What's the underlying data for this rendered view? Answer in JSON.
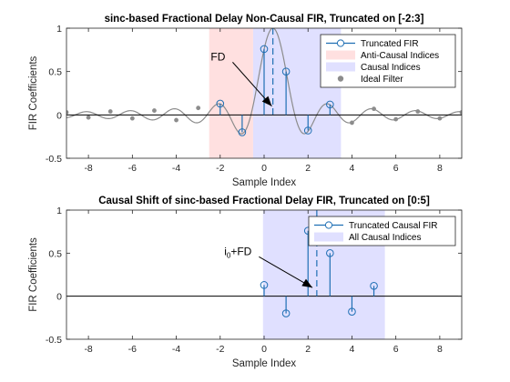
{
  "chart_data": [
    {
      "type": "stem",
      "title": "sinc-based Fractional Delay Non-Causal FIR, Truncated on [-2:3]",
      "xlabel": "Sample Index",
      "ylabel": "FIR Coefficients",
      "xlim": [
        -9,
        9
      ],
      "ylim": [
        -0.5,
        1
      ],
      "xticks": [
        "-8",
        "-6",
        "-4",
        "-2",
        "0",
        "2",
        "4",
        "6",
        "8"
      ],
      "yticks": [
        "-0.5",
        "0",
        "0.5",
        "1"
      ],
      "fractional_delay": 0.4,
      "delay_line_x": 0.4,
      "regions": [
        {
          "name": "Anti-Causal Indices",
          "x_range": [
            -2.5,
            -0.5
          ],
          "color": "#ffe0e0"
        },
        {
          "name": "Causal Indices",
          "x_range": [
            -0.5,
            3.5
          ],
          "color": "#e0e0ff"
        }
      ],
      "series": [
        {
          "name": "Truncated FIR",
          "style": "stem",
          "x": [
            -2,
            -1,
            0,
            1,
            2,
            3
          ],
          "values": [
            0.13,
            -0.2,
            0.76,
            0.5,
            -0.18,
            0.12
          ]
        },
        {
          "name": "Ideal Filter",
          "style": "sampled-curve",
          "x": [
            -9,
            -8,
            -7,
            -6,
            -5,
            -4,
            -3,
            4,
            5,
            6,
            7,
            8,
            9
          ],
          "values": [
            0.03,
            -0.03,
            0.04,
            -0.04,
            0.05,
            -0.06,
            0.08,
            -0.09,
            0.07,
            -0.05,
            0.04,
            -0.04,
            0.03
          ]
        }
      ],
      "legend": {
        "placement": "top-right",
        "entries": [
          {
            "label": "Truncated FIR",
            "kind": "stem-marker",
            "color": "#1f6fb4"
          },
          {
            "label": "Anti-Causal Indices",
            "kind": "patch",
            "color": "#ffe0e0"
          },
          {
            "label": "Causal Indices",
            "kind": "patch",
            "color": "#e0e0ff"
          },
          {
            "label": "Ideal Filter",
            "kind": "dot",
            "color": "#8c8c8c"
          }
        ]
      },
      "annotation": {
        "text": "FD",
        "tail": [
          -1.6,
          0.65
        ],
        "head": [
          0.35,
          0.1
        ]
      }
    },
    {
      "type": "stem",
      "title": "Causal Shift of sinc-based Fractional Delay FIR, Truncated on [0:5]",
      "xlabel": "Sample Index",
      "ylabel": "FIR Coefficients",
      "xlim": [
        -9,
        9
      ],
      "ylim": [
        -0.5,
        1
      ],
      "xticks": [
        "-8",
        "-6",
        "-4",
        "-2",
        "0",
        "2",
        "4",
        "6",
        "8"
      ],
      "yticks": [
        "-0.5",
        "0",
        "0.5",
        "1"
      ],
      "delay_line_x": 2.4,
      "regions": [
        {
          "name": "All Causal Indices",
          "x_range": [
            -0.05,
            5.5
          ],
          "color": "#e0e0ff"
        }
      ],
      "series": [
        {
          "name": "Truncated Causal FIR",
          "style": "stem",
          "x": [
            0,
            1,
            2,
            3,
            4,
            5
          ],
          "values": [
            0.13,
            -0.2,
            0.76,
            0.5,
            -0.18,
            0.12
          ]
        }
      ],
      "legend": {
        "placement": "top-right",
        "entries": [
          {
            "label": "Truncated Causal FIR",
            "kind": "stem-marker",
            "color": "#1f6fb4"
          },
          {
            "label": "All Causal Indices",
            "kind": "patch",
            "color": "#e0e0ff"
          }
        ]
      },
      "annotation": {
        "text": "i",
        "sub": "0",
        "text_after": "+FD",
        "tail": [
          -0.4,
          0.5
        ],
        "head": [
          2.2,
          0.1
        ]
      }
    }
  ]
}
